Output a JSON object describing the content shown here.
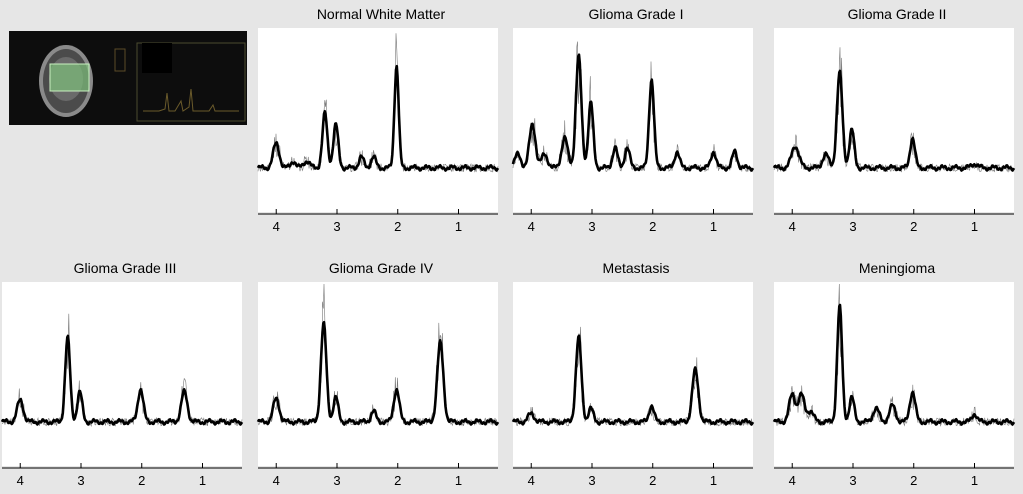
{
  "chart_data": [
    {
      "type": "line",
      "title": "Normal White Matter",
      "x_ticks": [
        4,
        3,
        2,
        1
      ],
      "xlim": [
        4.3,
        0.35
      ],
      "direction": "reversed",
      "peaks": [
        {
          "x": 4.0,
          "height": 0.18,
          "width": 0.05
        },
        {
          "x": 3.72,
          "height": 0.05,
          "width": 0.04
        },
        {
          "x": 3.5,
          "height": 0.05,
          "width": 0.05
        },
        {
          "x": 3.2,
          "height": 0.4,
          "width": 0.04
        },
        {
          "x": 3.02,
          "height": 0.32,
          "width": 0.04
        },
        {
          "x": 2.6,
          "height": 0.08,
          "width": 0.04
        },
        {
          "x": 2.4,
          "height": 0.08,
          "width": 0.04
        },
        {
          "x": 2.02,
          "height": 0.75,
          "width": 0.035
        }
      ]
    },
    {
      "type": "line",
      "title": "Glioma Grade I",
      "x_ticks": [
        4,
        3,
        2,
        1
      ],
      "xlim": [
        4.3,
        0.35
      ],
      "direction": "reversed",
      "peaks": [
        {
          "x": 4.22,
          "height": 0.1,
          "width": 0.05
        },
        {
          "x": 3.98,
          "height": 0.32,
          "width": 0.05
        },
        {
          "x": 3.78,
          "height": 0.1,
          "width": 0.05
        },
        {
          "x": 3.45,
          "height": 0.22,
          "width": 0.05
        },
        {
          "x": 3.22,
          "height": 0.82,
          "width": 0.045
        },
        {
          "x": 3.02,
          "height": 0.48,
          "width": 0.04
        },
        {
          "x": 2.62,
          "height": 0.15,
          "width": 0.04
        },
        {
          "x": 2.42,
          "height": 0.15,
          "width": 0.04
        },
        {
          "x": 2.02,
          "height": 0.65,
          "width": 0.04
        },
        {
          "x": 1.6,
          "height": 0.12,
          "width": 0.04
        },
        {
          "x": 1.0,
          "height": 0.12,
          "width": 0.04
        },
        {
          "x": 0.65,
          "height": 0.12,
          "width": 0.04
        }
      ]
    },
    {
      "type": "line",
      "title": "Glioma Grade II",
      "x_ticks": [
        4,
        3,
        2,
        1
      ],
      "xlim": [
        4.3,
        0.35
      ],
      "direction": "reversed",
      "peaks": [
        {
          "x": 3.95,
          "height": 0.16,
          "width": 0.06
        },
        {
          "x": 3.45,
          "height": 0.1,
          "width": 0.05
        },
        {
          "x": 3.22,
          "height": 0.7,
          "width": 0.045
        },
        {
          "x": 3.02,
          "height": 0.28,
          "width": 0.04
        },
        {
          "x": 2.02,
          "height": 0.22,
          "width": 0.04
        },
        {
          "x": 1.0,
          "height": 0.03,
          "width": 0.05
        }
      ]
    },
    {
      "type": "line",
      "title": "Glioma Grade III",
      "x_ticks": [
        4,
        3,
        2,
        1
      ],
      "xlim": [
        4.3,
        0.35
      ],
      "direction": "reversed",
      "peaks": [
        {
          "x": 4.0,
          "height": 0.16,
          "width": 0.05
        },
        {
          "x": 3.22,
          "height": 0.62,
          "width": 0.04
        },
        {
          "x": 3.02,
          "height": 0.22,
          "width": 0.04
        },
        {
          "x": 2.02,
          "height": 0.24,
          "width": 0.045
        },
        {
          "x": 1.3,
          "height": 0.22,
          "width": 0.05
        }
      ]
    },
    {
      "type": "line",
      "title": "Glioma Grade IV",
      "x_ticks": [
        4,
        3,
        2,
        1
      ],
      "xlim": [
        4.3,
        0.35
      ],
      "direction": "reversed",
      "peaks": [
        {
          "x": 4.0,
          "height": 0.17,
          "width": 0.05
        },
        {
          "x": 3.22,
          "height": 0.72,
          "width": 0.045
        },
        {
          "x": 3.02,
          "height": 0.18,
          "width": 0.04
        },
        {
          "x": 2.4,
          "height": 0.08,
          "width": 0.04
        },
        {
          "x": 2.02,
          "height": 0.24,
          "width": 0.045
        },
        {
          "x": 1.3,
          "height": 0.58,
          "width": 0.05
        }
      ]
    },
    {
      "type": "line",
      "title": "Metastasis",
      "x_ticks": [
        4,
        3,
        2,
        1
      ],
      "xlim": [
        4.3,
        0.35
      ],
      "direction": "reversed",
      "peaks": [
        {
          "x": 4.0,
          "height": 0.06,
          "width": 0.05
        },
        {
          "x": 3.22,
          "height": 0.62,
          "width": 0.045
        },
        {
          "x": 3.02,
          "height": 0.1,
          "width": 0.04
        },
        {
          "x": 2.02,
          "height": 0.12,
          "width": 0.04
        },
        {
          "x": 1.3,
          "height": 0.38,
          "width": 0.05
        }
      ]
    },
    {
      "type": "line",
      "title": "Meningioma",
      "x_ticks": [
        4,
        3,
        2,
        1
      ],
      "xlim": [
        4.3,
        0.35
      ],
      "direction": "reversed",
      "peaks": [
        {
          "x": 4.0,
          "height": 0.2,
          "width": 0.05
        },
        {
          "x": 3.85,
          "height": 0.2,
          "width": 0.05
        },
        {
          "x": 3.7,
          "height": 0.08,
          "width": 0.05
        },
        {
          "x": 3.22,
          "height": 0.85,
          "width": 0.04
        },
        {
          "x": 3.02,
          "height": 0.18,
          "width": 0.04
        },
        {
          "x": 2.62,
          "height": 0.1,
          "width": 0.05
        },
        {
          "x": 2.35,
          "height": 0.12,
          "width": 0.05
        },
        {
          "x": 2.02,
          "height": 0.22,
          "width": 0.045
        },
        {
          "x": 1.0,
          "height": 0.06,
          "width": 0.04
        }
      ]
    }
  ]
}
